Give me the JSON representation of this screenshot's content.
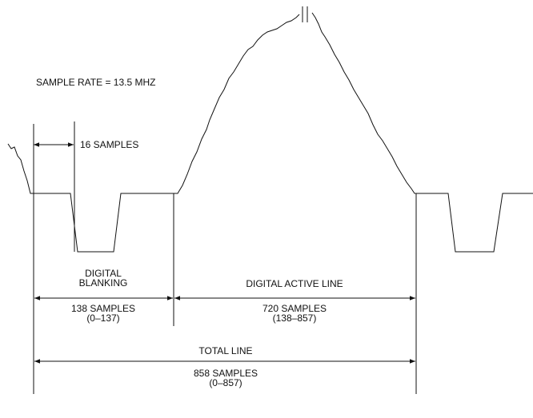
{
  "sample_rate": "SAMPLE RATE = 13.5 MHZ",
  "sync_width": "16 SAMPLES",
  "blanking": {
    "title": [
      "DIGITAL",
      "BLANKING"
    ],
    "samples": "138 SAMPLES",
    "range": "(0–137)"
  },
  "active_line": {
    "title": "DIGITAL ACTIVE LINE",
    "samples": "720 SAMPLES",
    "range": "(138–857)"
  },
  "total_line": {
    "title": "TOTAL LINE",
    "samples": "858 SAMPLES",
    "range": "(0–857)"
  }
}
